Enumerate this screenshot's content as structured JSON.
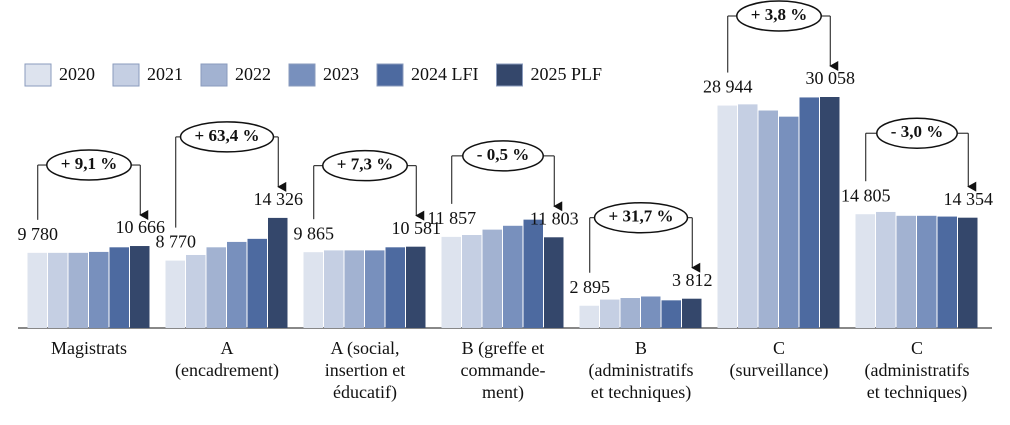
{
  "chart_data": {
    "type": "bar",
    "categories": [
      "Magistrats",
      "A\n(encadrement)",
      "A (social,\ninsertion et\néducatif)",
      "B (greffe et\ncommande-\nment)",
      "B\n(administratifs\net techniques)",
      "C\n(surveillance)",
      "C\n(administratifs\net techniques)"
    ],
    "series": [
      {
        "name": "2020",
        "color": "#dde3ee",
        "values": [
          9780,
          8770,
          9865,
          11857,
          2895,
          28944,
          14805
        ],
        "value_labels": [
          "9 780",
          "8 770",
          "9 865",
          "11 857",
          "2 895",
          "28 944",
          "14 805"
        ]
      },
      {
        "name": "2021",
        "color": "#c5cfe3",
        "values": [
          9780,
          9500,
          10100,
          12100,
          3700,
          29100,
          15100
        ]
      },
      {
        "name": "2022",
        "color": "#a2b2d1",
        "values": [
          9780,
          10500,
          10100,
          12800,
          3900,
          28300,
          14600
        ]
      },
      {
        "name": "2023",
        "color": "#7890bd",
        "values": [
          9900,
          11200,
          10100,
          13300,
          4100,
          27500,
          14600
        ]
      },
      {
        "name": "2024 LFI",
        "color": "#4d6aa0",
        "values": [
          10500,
          11600,
          10500,
          14100,
          3600,
          30000,
          14500
        ]
      },
      {
        "name": "2025 PLF",
        "color": "#34476b",
        "values": [
          10666,
          14326,
          10581,
          11803,
          3812,
          30058,
          14354
        ],
        "value_labels": [
          "10 666",
          "14 326",
          "10 581",
          "11 803",
          "3 812",
          "30 058",
          "14 354"
        ]
      }
    ],
    "annotations": [
      "+ 9,1 %",
      "+ 63,4 %",
      "+ 7,3 %",
      "- 0,5 %",
      "+ 31,7 %",
      "+ 3,8 %",
      "- 3,0 %"
    ],
    "ylim": [
      0,
      30058
    ]
  }
}
